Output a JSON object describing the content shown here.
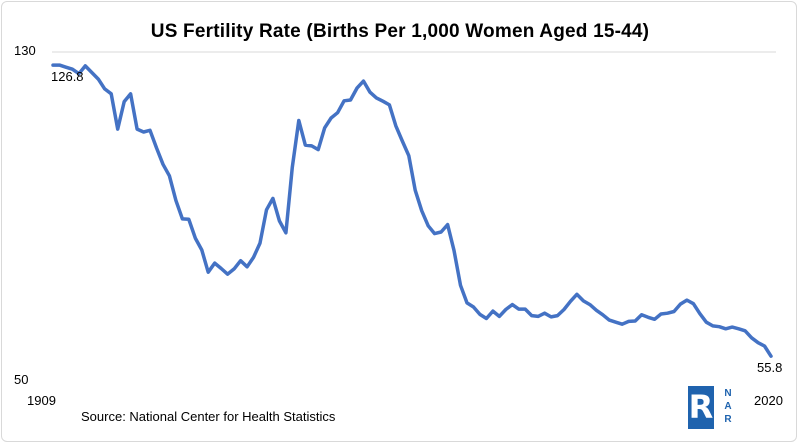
{
  "chart_data": {
    "type": "line",
    "title": "US Fertility Rate (Births Per 1,000 Women Aged 15-44)",
    "xlabel": "",
    "ylabel": "",
    "xlim": [
      1909,
      2020
    ],
    "ylim": [
      50,
      130
    ],
    "y_ticks": [
      "130",
      "50"
    ],
    "x_ticks": [
      "1909",
      "2020"
    ],
    "grid": "horizontal at top",
    "line_color": "#4472c4",
    "annotations": [
      {
        "year": 1909,
        "value": 126.8,
        "text": "126.8"
      },
      {
        "year": 2020,
        "value": 55.8,
        "text": "55.8"
      }
    ],
    "series": [
      {
        "x": [
          1909,
          1910,
          1911,
          1912,
          1913,
          1914,
          1915,
          1916,
          1917,
          1918,
          1919,
          1920,
          1921,
          1922,
          1923,
          1924,
          1925,
          1926,
          1927,
          1928,
          1929,
          1930,
          1931,
          1932,
          1933,
          1934,
          1935,
          1936,
          1937,
          1938,
          1939,
          1940,
          1941,
          1942,
          1943,
          1944,
          1945,
          1946,
          1947,
          1948,
          1949,
          1950,
          1951,
          1952,
          1953,
          1954,
          1955,
          1956,
          1957,
          1958,
          1959,
          1960,
          1961,
          1962,
          1963,
          1964,
          1965,
          1966,
          1967,
          1968,
          1969,
          1970,
          1971,
          1972,
          1973,
          1974,
          1975,
          1976,
          1977,
          1978,
          1979,
          1980,
          1981,
          1982,
          1983,
          1984,
          1985,
          1986,
          1987,
          1988,
          1989,
          1990,
          1991,
          1992,
          1993,
          1994,
          1995,
          1996,
          1997,
          1998,
          1999,
          2000,
          2001,
          2002,
          2003,
          2004,
          2005,
          2006,
          2007,
          2008,
          2009,
          2010,
          2011,
          2012,
          2013,
          2014,
          2015,
          2016,
          2017,
          2018,
          2019,
          2020
        ],
        "y": [
          126.8,
          126.8,
          126.3,
          125.8,
          124.7,
          126.6,
          125.0,
          123.4,
          121.0,
          119.8,
          111.2,
          117.9,
          119.8,
          111.2,
          110.5,
          110.9,
          106.6,
          102.6,
          99.8,
          93.8,
          89.3,
          89.2,
          84.6,
          81.7,
          76.3,
          78.5,
          77.2,
          75.8,
          77.1,
          79.1,
          77.6,
          79.9,
          83.4,
          91.5,
          94.3,
          88.8,
          85.9,
          101.9,
          113.3,
          107.3,
          107.1,
          106.2,
          111.5,
          113.9,
          115.2,
          118.1,
          118.3,
          121.2,
          122.9,
          120.2,
          118.8,
          118.0,
          117.1,
          112.0,
          108.3,
          104.7,
          96.3,
          91.3,
          87.6,
          85.7,
          86.1,
          87.9,
          81.6,
          73.1,
          68.8,
          67.8,
          66.0,
          65.0,
          66.8,
          65.5,
          67.2,
          68.4,
          67.3,
          67.3,
          65.7,
          65.5,
          66.3,
          65.4,
          65.7,
          67.2,
          69.2,
          70.9,
          69.3,
          68.4,
          67.0,
          65.9,
          64.6,
          64.1,
          63.6,
          64.3,
          64.4,
          65.9,
          65.3,
          64.8,
          66.1,
          66.3,
          66.7,
          68.5,
          69.5,
          68.6,
          66.2,
          64.1,
          63.2,
          63.0,
          62.5,
          62.9,
          62.5,
          62.0,
          60.3,
          59.1,
          58.3,
          55.8
        ]
      }
    ]
  },
  "footer": {
    "source": "Source: National Center for Health Statistics",
    "logo_letter": "R",
    "logo_side_text": "N A R"
  }
}
